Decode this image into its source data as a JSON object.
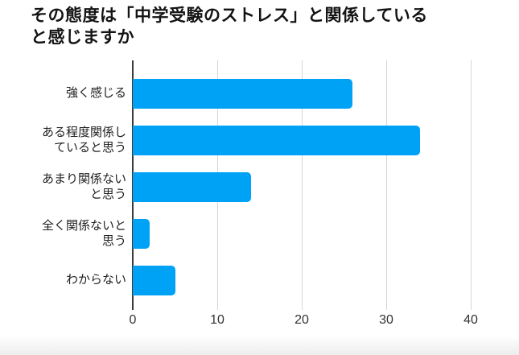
{
  "title": {
    "text": "その態度は「中学受験のストレス」と関係している\nと感じますか"
  },
  "chart_data": {
    "type": "bar",
    "orientation": "horizontal",
    "title": "その態度は「中学受験のストレス」と関係していると感じますか",
    "categories": [
      "強く感じる",
      "ある程度関係していると思う",
      "あまり関係ないと思う",
      "全く関係ないと思う",
      "わからない"
    ],
    "category_label_lines": [
      "強く感じる",
      "ある程度関係し\nていると思う",
      "あまり関係ない\nと思う",
      "全く関係ないと\n思う",
      "わからない"
    ],
    "values": [
      26,
      34,
      14,
      2,
      5
    ],
    "xlabel": "",
    "ylabel": "",
    "xlim": [
      0,
      40
    ],
    "xticks": [
      0,
      10,
      20,
      30,
      40
    ],
    "grid": true,
    "legend": "none",
    "colors": {
      "bar": "#00a2f5",
      "axis_line": "#3b3b3b",
      "gridline": "#d6d6d6",
      "tick_label": "#333333",
      "category_label": "#1f1f1f",
      "title": "#141414",
      "bottom_strip": "#ededee"
    }
  }
}
